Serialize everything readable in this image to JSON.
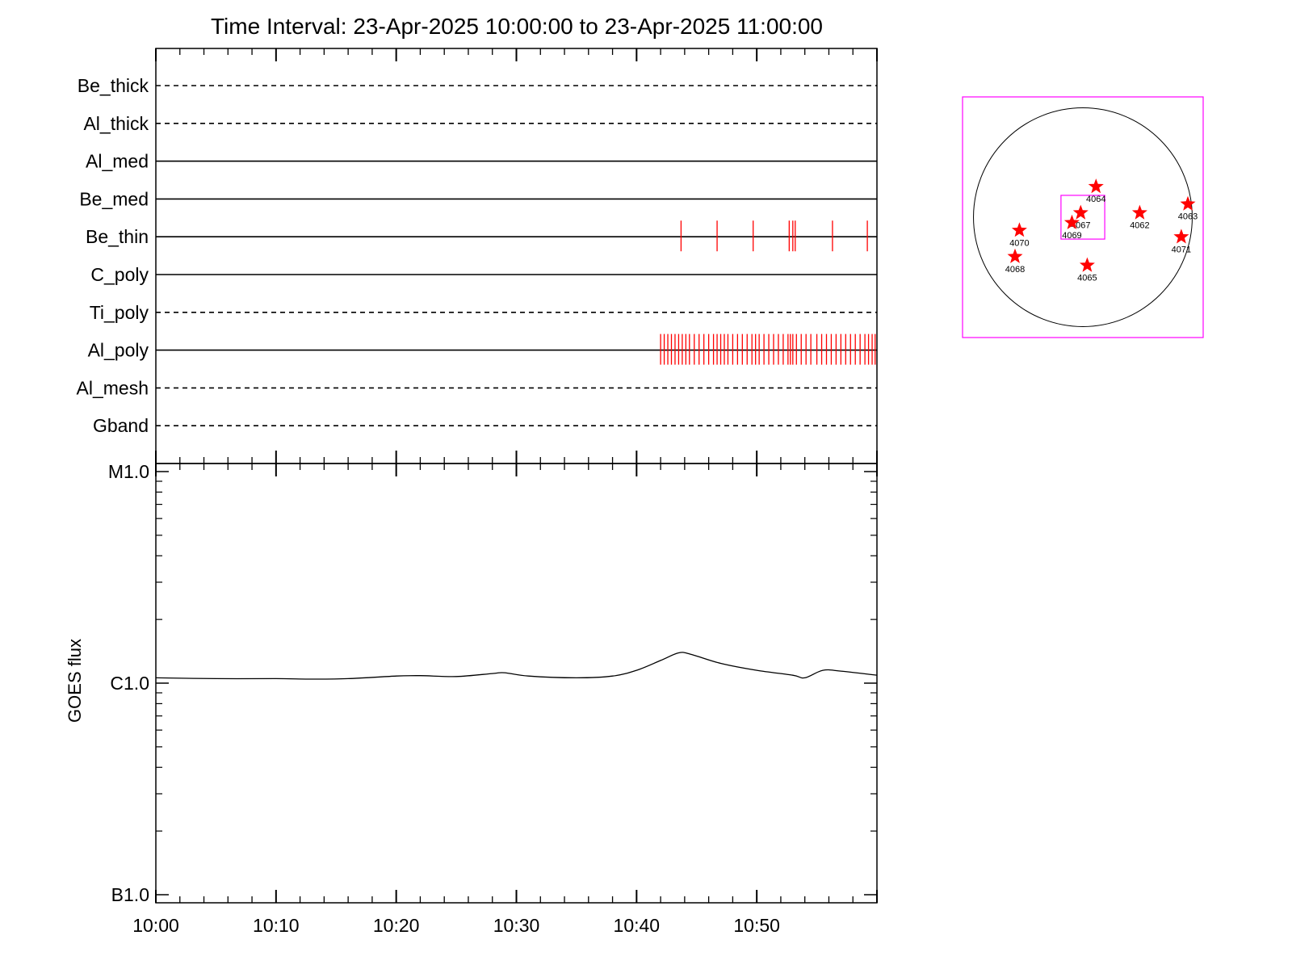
{
  "title": "Time Interval: 23-Apr-2025 10:00:00 to 23-Apr-2025 11:00:00",
  "chart_data": [
    {
      "type": "timeline",
      "x_unit": "minutes after 10:00",
      "xlim": [
        0,
        60
      ],
      "x_ticks": [
        {
          "x": 0,
          "label": "10:00"
        },
        {
          "x": 10,
          "label": "10:10"
        },
        {
          "x": 20,
          "label": "10:20"
        },
        {
          "x": 30,
          "label": "10:30"
        },
        {
          "x": 40,
          "label": "10:40"
        },
        {
          "x": 50,
          "label": "10:50"
        }
      ],
      "rows": [
        {
          "name": "Be_thick",
          "style": "dashed",
          "events": []
        },
        {
          "name": "Al_thick",
          "style": "dashed",
          "events": []
        },
        {
          "name": "Al_med",
          "style": "solid",
          "events": []
        },
        {
          "name": "Be_med",
          "style": "solid",
          "events": []
        },
        {
          "name": "Be_thin",
          "style": "solid",
          "events": [
            43.7,
            46.7,
            49.7,
            52.7,
            53.0,
            53.2,
            56.3,
            59.2
          ]
        },
        {
          "name": "C_poly",
          "style": "solid",
          "events": []
        },
        {
          "name": "Ti_poly",
          "style": "dashed",
          "events": []
        },
        {
          "name": "Al_poly",
          "style": "solid",
          "events": [
            42.0,
            42.3,
            42.6,
            42.9,
            43.2,
            43.5,
            43.8,
            44.1,
            44.4,
            44.8,
            45.2,
            45.6,
            46.0,
            46.4,
            46.7,
            47.0,
            47.3,
            47.6,
            48.0,
            48.4,
            48.8,
            49.2,
            49.6,
            49.9,
            50.2,
            50.6,
            51.0,
            51.4,
            51.8,
            52.2,
            52.6,
            52.8,
            53.0,
            53.3,
            53.7,
            54.1,
            54.5,
            55.0,
            55.4,
            55.8,
            56.2,
            56.6,
            57.0,
            57.4,
            57.8,
            58.2,
            58.6,
            59.0,
            59.3,
            59.6,
            59.85
          ]
        },
        {
          "name": "Al_mesh",
          "style": "dashed",
          "events": []
        },
        {
          "name": "Gband",
          "style": "dashed",
          "events": []
        }
      ],
      "colors": {
        "event": "#ff0000",
        "line": "#000000"
      }
    },
    {
      "type": "line",
      "ylabel": "GOES flux",
      "y_scale": "log",
      "ylim": [
        1e-07,
        1e-05
      ],
      "y_ticks": [
        {
          "y": 1e-05,
          "label": "M1.0"
        },
        {
          "y": 1e-06,
          "label": "C1.0"
        },
        {
          "y": 1e-07,
          "label": "B1.0"
        }
      ],
      "xlim": [
        0,
        60
      ],
      "x": [
        0,
        5,
        10,
        13,
        16,
        20,
        22,
        25,
        28,
        29,
        31,
        35,
        38,
        40,
        42,
        43.5,
        44.5,
        47,
        50,
        53,
        54,
        55.5,
        57,
        60
      ],
      "y": [
        1.06e-06,
        1.05e-06,
        1.05e-06,
        1.045e-06,
        1.05e-06,
        1.08e-06,
        1.085e-06,
        1.075e-06,
        1.11e-06,
        1.12e-06,
        1.08e-06,
        1.06e-06,
        1.08e-06,
        1.15e-06,
        1.28e-06,
        1.39e-06,
        1.37e-06,
        1.24e-06,
        1.15e-06,
        1.09e-06,
        1.06e-06,
        1.15e-06,
        1.14e-06,
        1.09e-06
      ]
    },
    {
      "type": "scatter",
      "projection": "solar disk",
      "xlim": [
        -1.1,
        1.1
      ],
      "ylim": [
        -1.1,
        1.1
      ],
      "colors": {
        "marker": "#ff0000",
        "box": "#ff00ff",
        "disk": "#000000"
      },
      "active_regions": [
        {
          "label": "4064",
          "x": 0.12,
          "y": 0.28
        },
        {
          "label": "4067",
          "x": -0.02,
          "y": 0.04
        },
        {
          "label": "4069",
          "x": -0.1,
          "y": -0.05
        },
        {
          "label": "4062",
          "x": 0.52,
          "y": 0.04
        },
        {
          "label": "4063",
          "x": 0.96,
          "y": 0.12
        },
        {
          "label": "4070",
          "x": -0.58,
          "y": -0.12
        },
        {
          "label": "4071",
          "x": 0.9,
          "y": -0.18
        },
        {
          "label": "4068",
          "x": -0.62,
          "y": -0.36
        },
        {
          "label": "4065",
          "x": 0.04,
          "y": -0.44
        }
      ],
      "field_of_view": {
        "x": [
          -0.2,
          0.2
        ],
        "y": [
          -0.2,
          0.2
        ]
      }
    }
  ]
}
